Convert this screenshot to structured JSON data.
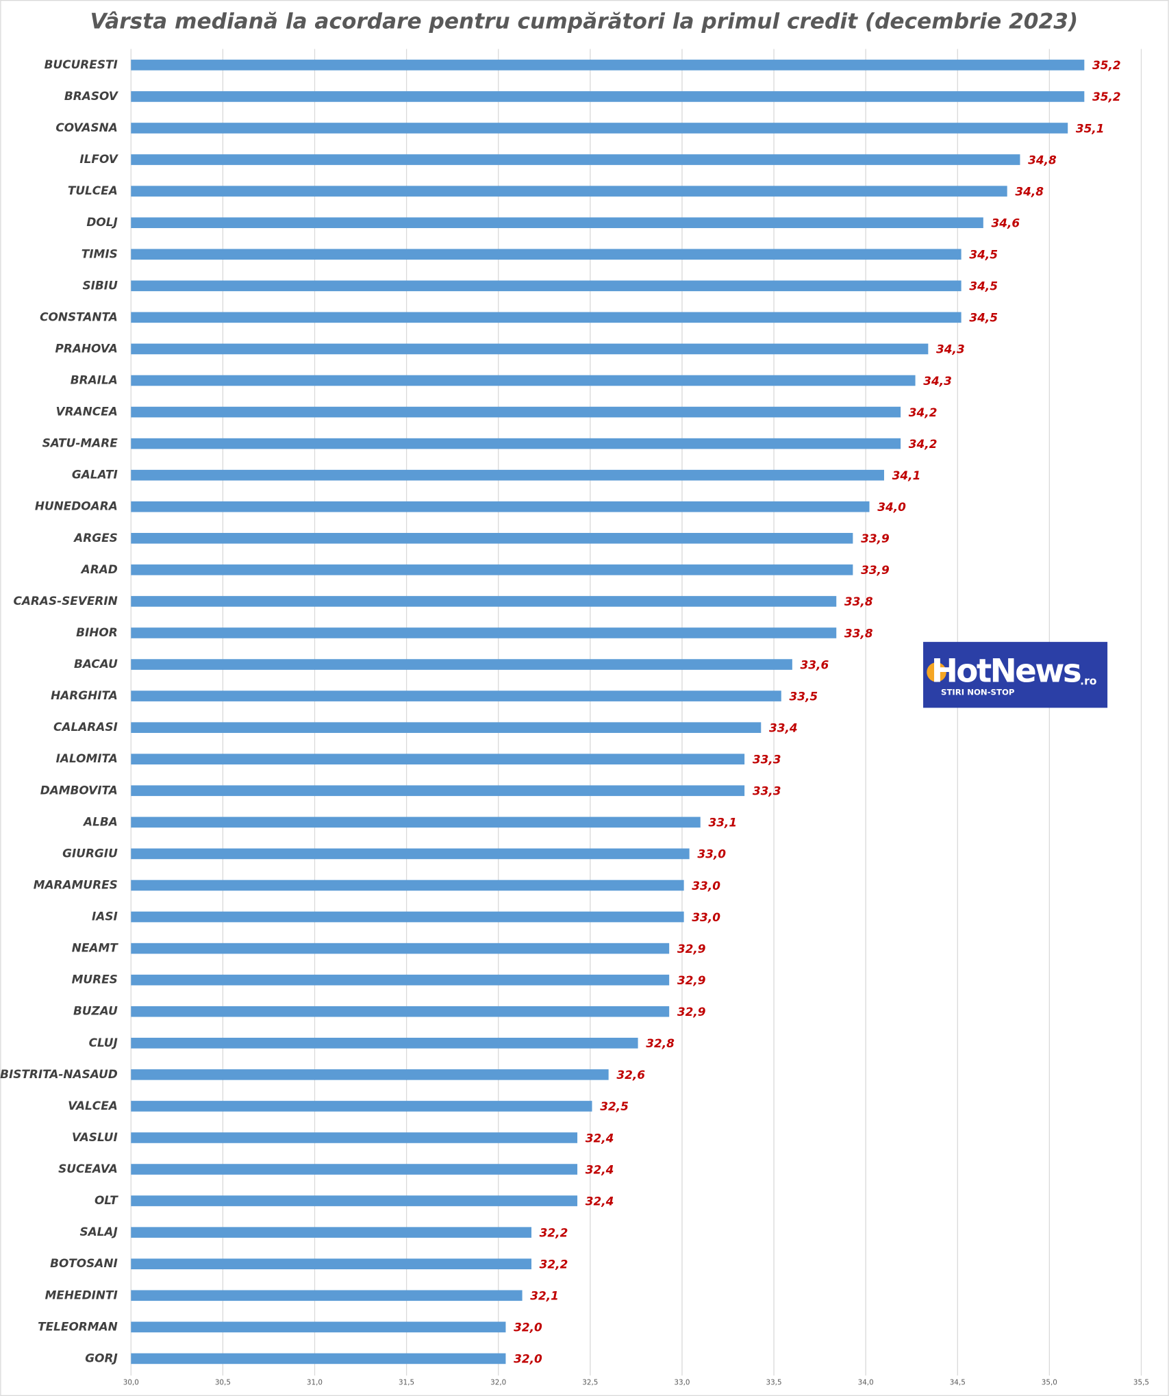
{
  "chart_data": {
    "type": "hbar",
    "title": "Vârsta mediană la acordare pentru cumpărători la primul credit (decembrie 2023)",
    "categories": [
      "BUCURESTI",
      "BRASOV",
      "COVASNA",
      "ILFOV",
      "TULCEA",
      "DOLJ",
      "TIMIS",
      "SIBIU",
      "CONSTANTA",
      "PRAHOVA",
      "BRAILA",
      "VRANCEA",
      "SATU-MARE",
      "GALATI",
      "HUNEDOARA",
      "ARGES",
      "ARAD",
      "CARAS-SEVERIN",
      "BIHOR",
      "BACAU",
      "HARGHITA",
      "CALARASI",
      "IALOMITA",
      "DAMBOVITA",
      "ALBA",
      "GIURGIU",
      "MARAMURES",
      "IASI",
      "NEAMT",
      "MURES",
      "BUZAU",
      "CLUJ",
      "BISTRITA-NASAUD",
      "VALCEA",
      "VASLUI",
      "SUCEAVA",
      "OLT",
      "SALAJ",
      "BOTOSANI",
      "MEHEDINTI",
      "TELEORMAN",
      "GORJ"
    ],
    "values": [
      35.19,
      35.19,
      35.1,
      34.84,
      34.77,
      34.64,
      34.52,
      34.52,
      34.52,
      34.34,
      34.27,
      34.19,
      34.19,
      34.1,
      34.02,
      33.93,
      33.93,
      33.84,
      33.84,
      33.6,
      33.54,
      33.43,
      33.34,
      33.34,
      33.1,
      33.04,
      33.01,
      33.01,
      32.93,
      32.93,
      32.93,
      32.76,
      32.6,
      32.51,
      32.43,
      32.43,
      32.43,
      32.18,
      32.18,
      32.13,
      32.04,
      32.04
    ],
    "value_labels": [
      "35,2",
      "35,2",
      "35,1",
      "34,8",
      "34,8",
      "34,6",
      "34,5",
      "34,5",
      "34,5",
      "34,3",
      "34,3",
      "34,2",
      "34,2",
      "34,1",
      "34,0",
      "33,9",
      "33,9",
      "33,8",
      "33,8",
      "33,6",
      "33,5",
      "33,4",
      "33,3",
      "33,3",
      "33,1",
      "33,0",
      "33,0",
      "33,0",
      "32,9",
      "32,9",
      "32,9",
      "32,8",
      "32,6",
      "32,5",
      "32,4",
      "32,4",
      "32,4",
      "32,2",
      "32,2",
      "32,1",
      "32,0",
      "32,0"
    ],
    "color": "#5b9bd5",
    "label_color": "#c00000",
    "xlim": [
      30,
      35.5
    ],
    "xticks": [
      {
        "value": 30,
        "label": "30,0"
      },
      {
        "value": 30.5,
        "label": "30,5"
      },
      {
        "value": 31,
        "label": "31,0"
      },
      {
        "value": 31.5,
        "label": "31,5"
      },
      {
        "value": 32,
        "label": "32,0"
      },
      {
        "value": 32.5,
        "label": "32,5"
      },
      {
        "value": 33,
        "label": "33,0"
      },
      {
        "value": 33.5,
        "label": "33,5"
      },
      {
        "value": 34,
        "label": "34,0"
      },
      {
        "value": 34.5,
        "label": "34,5"
      },
      {
        "value": 35,
        "label": "35,0"
      },
      {
        "value": 35.5,
        "label": "35,5"
      }
    ],
    "grid": true
  },
  "logo": {
    "brand": "HotNews",
    "suffix": ".ro",
    "tagline": "STIRI NON-STOP"
  }
}
